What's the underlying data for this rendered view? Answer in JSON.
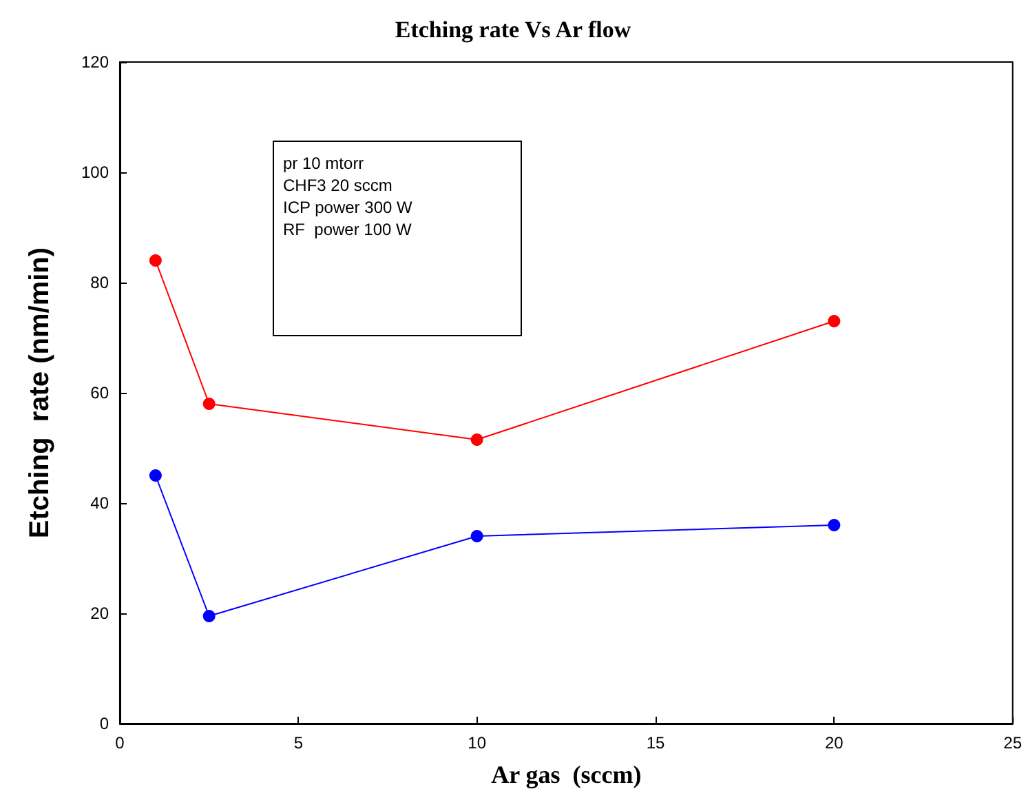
{
  "chart_data": {
    "type": "line",
    "title": "Etching rate Vs Ar flow",
    "xlabel": "Ar gas  (sccm)",
    "ylabel": "Etching  rate (nm/min)",
    "x": [
      1,
      2.5,
      10,
      20
    ],
    "series": [
      {
        "color": "#ff0000",
        "values": [
          84,
          58,
          51.5,
          73
        ]
      },
      {
        "color": "#0000ff",
        "values": [
          45,
          19.5,
          34,
          36
        ]
      }
    ],
    "xlim": [
      0,
      25
    ],
    "xticks": [
      0,
      5,
      10,
      15,
      20,
      25
    ],
    "ylim": [
      0,
      120
    ],
    "yticks": [
      0,
      20,
      40,
      60,
      80,
      100,
      120
    ],
    "annotations": [
      "pr 10 mtorr",
      "CHF3 20 sccm",
      "ICP power 300 W",
      "RF  power 100 W"
    ],
    "grid": false,
    "marker": "circle",
    "line_style": "solid"
  }
}
